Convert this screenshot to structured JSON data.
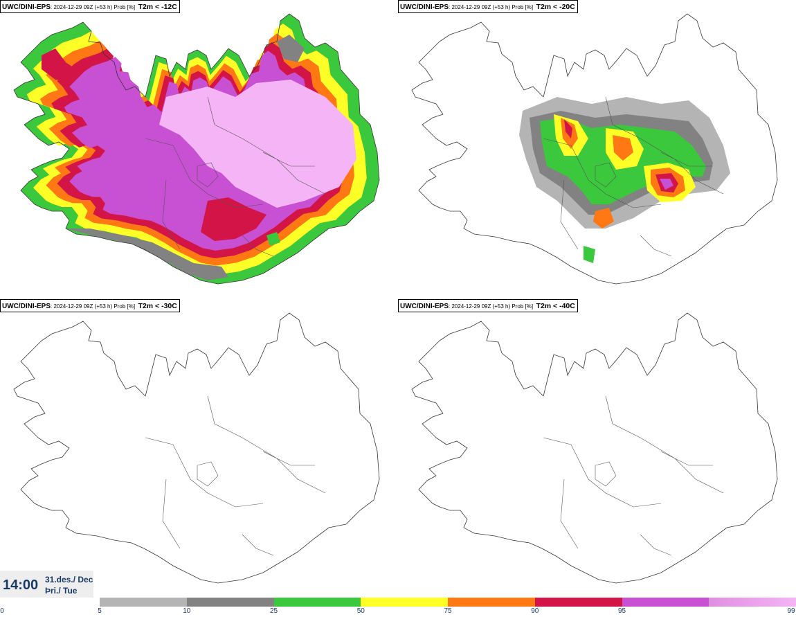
{
  "panels": [
    {
      "source": "UWC/DINI-EPS",
      "meta": ": 2024-12-29 09Z (+53 h) Prob [%]",
      "variable": "T2m < -12C"
    },
    {
      "source": "UWC/DINI-EPS",
      "meta": ": 2024-12-29 09Z (+53 h) Prob [%]",
      "variable": "T2m < -20C"
    },
    {
      "source": "UWC/DINI-EPS",
      "meta": ": 2024-12-29 09Z (+53 h) Prob [%]",
      "variable": "T2m < -30C"
    },
    {
      "source": "UWC/DINI-EPS",
      "meta": ": 2024-12-29 09Z (+53 h) Prob [%]",
      "variable": "T2m < -40C"
    }
  ],
  "valid_time": {
    "time": "14:00",
    "date_line1": "31.des./ Dec",
    "date_line2": "Þri./ Tue"
  },
  "colorbar": {
    "ticks": [
      "0",
      "5",
      "10",
      "25",
      "50",
      "75",
      "90",
      "95",
      "99"
    ],
    "colors": [
      "#b4b4b4",
      "#828282",
      "#3cc83c",
      "#ffff28",
      "#ff7814",
      "#d21446",
      "#c850d2",
      "#f5b4f5"
    ]
  }
}
